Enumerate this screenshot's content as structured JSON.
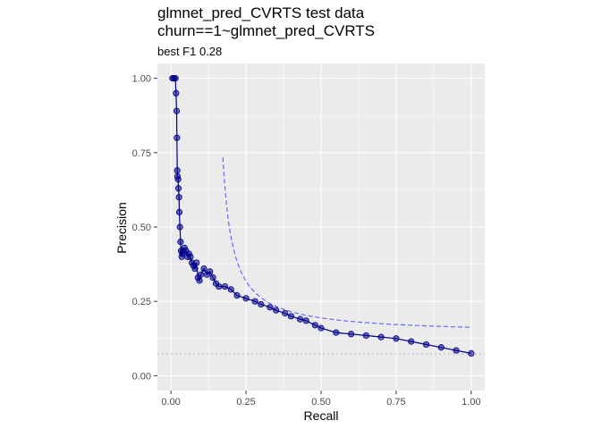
{
  "chart_data": {
    "type": "line",
    "title": "glmnet_pred_CVRTS test data",
    "subtitle_line": "churn==1~glmnet_pred_CVRTS",
    "caption": "best F1 0.28",
    "xlabel": "Recall",
    "ylabel": "Precision",
    "xlim": [
      -0.045,
      1.045
    ],
    "ylim": [
      -0.05,
      1.05
    ],
    "x_ticks": [
      0.0,
      0.25,
      0.5,
      0.75,
      1.0
    ],
    "x_tick_labels": [
      "0.00",
      "0.25",
      "0.50",
      "0.75",
      "1.00"
    ],
    "y_ticks": [
      0.0,
      0.25,
      0.5,
      0.75,
      1.0
    ],
    "y_tick_labels": [
      "0.00",
      "0.25",
      "0.50",
      "0.75",
      "1.00"
    ],
    "grid": true,
    "series": [
      {
        "kind": "precision-recall",
        "color": "#00008b",
        "x": [
          0.005,
          0.01,
          0.015,
          0.017,
          0.019,
          0.02,
          0.021,
          0.022,
          0.024,
          0.025,
          0.027,
          0.028,
          0.03,
          0.032,
          0.034,
          0.036,
          0.038,
          0.04,
          0.045,
          0.05,
          0.055,
          0.06,
          0.065,
          0.07,
          0.075,
          0.08,
          0.085,
          0.09,
          0.095,
          0.1,
          0.11,
          0.12,
          0.13,
          0.14,
          0.15,
          0.16,
          0.18,
          0.2,
          0.22,
          0.25,
          0.28,
          0.3,
          0.33,
          0.35,
          0.38,
          0.4,
          0.43,
          0.45,
          0.48,
          0.5,
          0.55,
          0.6,
          0.65,
          0.7,
          0.75,
          0.8,
          0.85,
          0.9,
          0.95,
          1.0
        ],
        "y": [
          1.0,
          1.0,
          1.0,
          0.95,
          0.89,
          0.8,
          0.69,
          0.67,
          0.66,
          0.63,
          0.6,
          0.55,
          0.5,
          0.45,
          0.42,
          0.4,
          0.41,
          0.42,
          0.43,
          0.42,
          0.4,
          0.41,
          0.4,
          0.38,
          0.37,
          0.36,
          0.38,
          0.33,
          0.32,
          0.34,
          0.36,
          0.34,
          0.35,
          0.33,
          0.31,
          0.3,
          0.3,
          0.29,
          0.27,
          0.26,
          0.25,
          0.24,
          0.23,
          0.22,
          0.21,
          0.2,
          0.19,
          0.185,
          0.17,
          0.16,
          0.145,
          0.14,
          0.135,
          0.13,
          0.125,
          0.115,
          0.105,
          0.095,
          0.085,
          0.075
        ]
      }
    ],
    "reference_lines": {
      "baseline_precision": 0.073,
      "max_recall": 1.0,
      "min_recall": 0.0,
      "max_precision": 1.0
    },
    "f1_contour": {
      "f1": 0.28,
      "color": "#6666ff"
    }
  }
}
